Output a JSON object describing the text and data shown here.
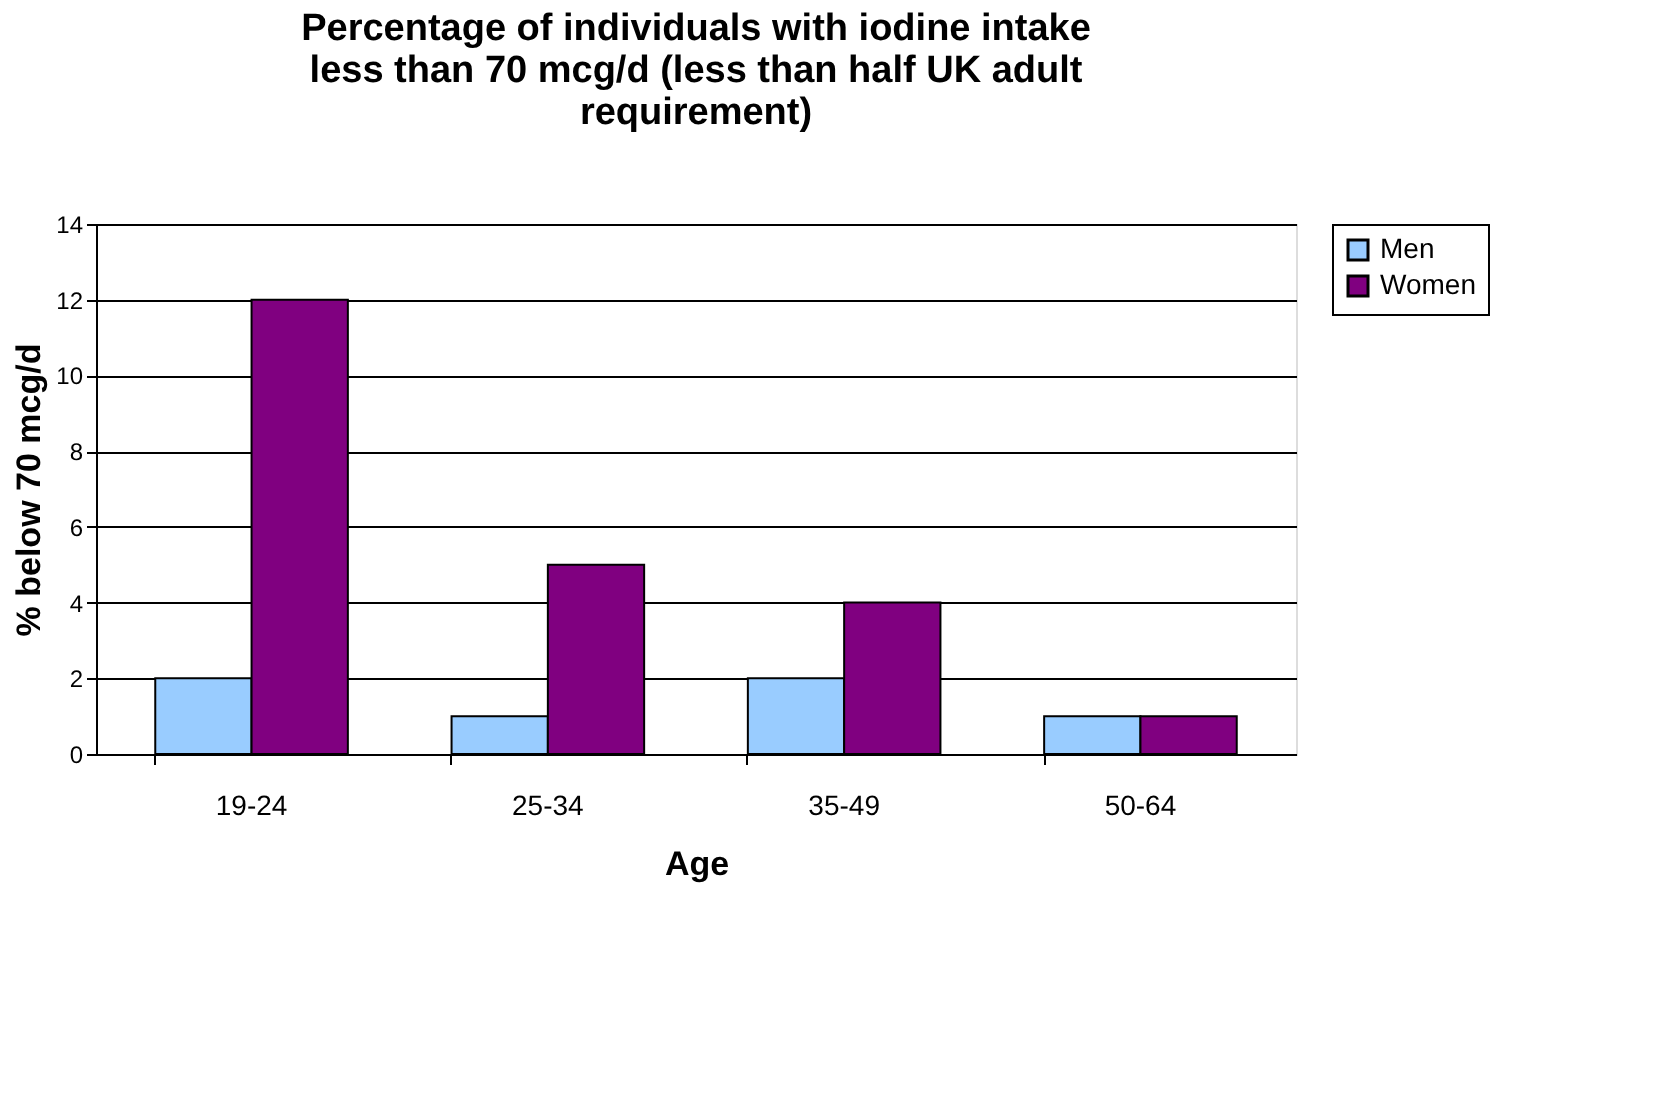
{
  "chart_data": {
    "type": "bar",
    "title": "Percentage of individuals with iodine intake less than 70 mcg/d (less than half UK adult requirement)",
    "xlabel": "Age",
    "ylabel": "% below 70 mcg/d",
    "categories": [
      "19-24",
      "25-34",
      "35-49",
      "50-64"
    ],
    "series": [
      {
        "name": "Men",
        "color": "#99ccff",
        "values": [
          2,
          1,
          2,
          1
        ]
      },
      {
        "name": "Women",
        "color": "#800080",
        "values": [
          12,
          5,
          4,
          1
        ]
      }
    ],
    "ylim": [
      0,
      14
    ],
    "yticks": [
      0,
      2,
      4,
      6,
      8,
      10,
      12,
      14
    ],
    "grid": "y",
    "legend": "right"
  }
}
